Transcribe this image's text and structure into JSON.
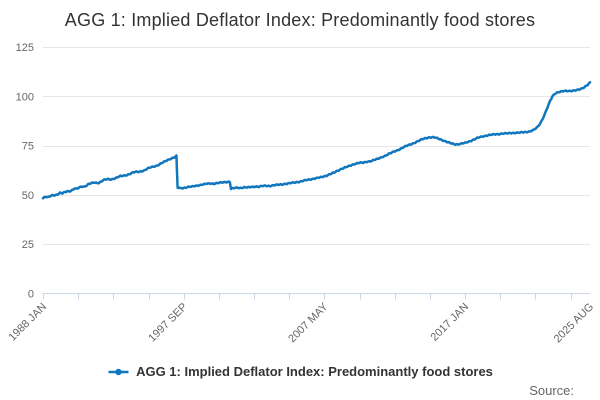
{
  "title": "AGG 1: Implied Deflator Index: Predominantly food stores",
  "source_label": "Source:",
  "legend": {
    "label": "AGG 1: Implied Deflator Index: Predominantly food stores"
  },
  "colors": {
    "series": "#1076be",
    "grid": "#e6e6e6",
    "axis": "#ccd6eb",
    "tick": "#ccd6eb",
    "axis_label": "#666666",
    "title": "#333333",
    "background": "#ffffff"
  },
  "chart_data": {
    "type": "line",
    "title": "AGG 1: Implied Deflator Index: Predominantly food stores",
    "legend_position": "bottom",
    "grid": "horizontal",
    "x_axis": {
      "unit": "month",
      "start": "1988 JAN",
      "end": "2025 AUG",
      "total_months": 451,
      "tick_interval_months": 29,
      "tick_count": 16,
      "labels": [
        {
          "month": 0,
          "text": "1988 JAN"
        },
        {
          "month": 116,
          "text": "1997 SEP"
        },
        {
          "month": 232,
          "text": "2007 MAY"
        },
        {
          "month": 348,
          "text": "2017 JAN"
        },
        {
          "month": 451,
          "text": "2025 AUG"
        }
      ]
    },
    "y_axis": {
      "min": 0,
      "max": 125,
      "ticks": [
        0,
        25,
        50,
        75,
        100,
        125
      ]
    },
    "series": [
      {
        "name": "AGG 1: Implied Deflator Index: Predominantly food stores",
        "color": "#1076be",
        "points": [
          [
            0,
            48.2
          ],
          [
            2,
            48.9
          ],
          [
            4,
            48.7
          ],
          [
            6,
            49.4
          ],
          [
            8,
            49.9
          ],
          [
            10,
            49.8
          ],
          [
            12,
            50.2
          ],
          [
            14,
            50.9
          ],
          [
            16,
            50.7
          ],
          [
            18,
            51.4
          ],
          [
            20,
            51.9
          ],
          [
            22,
            51.8
          ],
          [
            24,
            52.3
          ],
          [
            26,
            53.1
          ],
          [
            28,
            53.0
          ],
          [
            30,
            53.8
          ],
          [
            32,
            54.3
          ],
          [
            34,
            54.1
          ],
          [
            36,
            54.7
          ],
          [
            38,
            55.5
          ],
          [
            40,
            55.9
          ],
          [
            42,
            56.3
          ],
          [
            44,
            56.1
          ],
          [
            46,
            56.0
          ],
          [
            48,
            56.7
          ],
          [
            50,
            57.4
          ],
          [
            52,
            57.8
          ],
          [
            54,
            58.0
          ],
          [
            56,
            57.8
          ],
          [
            58,
            58.1
          ],
          [
            60,
            58.4
          ],
          [
            62,
            59.0
          ],
          [
            64,
            59.5
          ],
          [
            66,
            59.7
          ],
          [
            68,
            59.9
          ],
          [
            70,
            60.2
          ],
          [
            72,
            60.6
          ],
          [
            74,
            61.2
          ],
          [
            76,
            61.6
          ],
          [
            78,
            61.7
          ],
          [
            80,
            61.8
          ],
          [
            82,
            62.1
          ],
          [
            84,
            62.4
          ],
          [
            86,
            63.2
          ],
          [
            88,
            63.8
          ],
          [
            90,
            64.2
          ],
          [
            92,
            64.5
          ],
          [
            94,
            64.8
          ],
          [
            96,
            65.3
          ],
          [
            98,
            66.1
          ],
          [
            100,
            66.8
          ],
          [
            102,
            67.5
          ],
          [
            104,
            68.0
          ],
          [
            106,
            68.5
          ],
          [
            108,
            68.9
          ],
          [
            109,
            69.2
          ],
          [
            110,
            69.6
          ],
          [
            111,
            53.6
          ],
          [
            114,
            53.4
          ],
          [
            117,
            53.6
          ],
          [
            120,
            53.9
          ],
          [
            123,
            54.2
          ],
          [
            126,
            54.6
          ],
          [
            129,
            54.9
          ],
          [
            132,
            55.2
          ],
          [
            135,
            55.6
          ],
          [
            138,
            55.8
          ],
          [
            141,
            55.6
          ],
          [
            144,
            55.9
          ],
          [
            147,
            56.2
          ],
          [
            150,
            56.5
          ],
          [
            154,
            56.6
          ],
          [
            155,
            52.9
          ],
          [
            157,
            53.3
          ],
          [
            160,
            53.6
          ],
          [
            163,
            53.5
          ],
          [
            166,
            53.8
          ],
          [
            169,
            53.7
          ],
          [
            172,
            54.0
          ],
          [
            175,
            54.2
          ],
          [
            178,
            54.1
          ],
          [
            181,
            54.4
          ],
          [
            184,
            54.6
          ],
          [
            187,
            54.5
          ],
          [
            190,
            54.8
          ],
          [
            193,
            55.0
          ],
          [
            196,
            55.2
          ],
          [
            199,
            55.5
          ],
          [
            202,
            55.7
          ],
          [
            205,
            56.0
          ],
          [
            208,
            56.3
          ],
          [
            211,
            56.6
          ],
          [
            214,
            57.0
          ],
          [
            217,
            57.4
          ],
          [
            220,
            57.8
          ],
          [
            223,
            58.2
          ],
          [
            226,
            58.5
          ],
          [
            228,
            58.7
          ],
          [
            231,
            59.2
          ],
          [
            234,
            59.8
          ],
          [
            237,
            60.6
          ],
          [
            240,
            61.2
          ],
          [
            243,
            62.2
          ],
          [
            246,
            63.2
          ],
          [
            249,
            63.9
          ],
          [
            252,
            64.4
          ],
          [
            255,
            65.2
          ],
          [
            258,
            65.9
          ],
          [
            261,
            66.3
          ],
          [
            264,
            66.2
          ],
          [
            267,
            66.7
          ],
          [
            270,
            67.1
          ],
          [
            273,
            67.7
          ],
          [
            276,
            68.2
          ],
          [
            279,
            69.0
          ],
          [
            282,
            69.8
          ],
          [
            285,
            70.7
          ],
          [
            288,
            71.5
          ],
          [
            291,
            72.3
          ],
          [
            294,
            73.1
          ],
          [
            297,
            74.0
          ],
          [
            300,
            74.9
          ],
          [
            303,
            75.6
          ],
          [
            306,
            76.3
          ],
          [
            309,
            77.1
          ],
          [
            312,
            78.0
          ],
          [
            315,
            78.7
          ],
          [
            318,
            79.1
          ],
          [
            321,
            79.2
          ],
          [
            324,
            78.9
          ],
          [
            327,
            78.3
          ],
          [
            330,
            77.6
          ],
          [
            333,
            76.8
          ],
          [
            336,
            76.2
          ],
          [
            339,
            75.7
          ],
          [
            342,
            75.6
          ],
          [
            345,
            75.9
          ],
          [
            348,
            76.3
          ],
          [
            351,
            77.0
          ],
          [
            354,
            77.7
          ],
          [
            357,
            78.5
          ],
          [
            360,
            79.2
          ],
          [
            363,
            79.7
          ],
          [
            366,
            80.1
          ],
          [
            369,
            80.4
          ],
          [
            372,
            80.6
          ],
          [
            375,
            80.8
          ],
          [
            378,
            81.0
          ],
          [
            381,
            81.1
          ],
          [
            384,
            81.2
          ],
          [
            387,
            81.4
          ],
          [
            390,
            81.5
          ],
          [
            393,
            81.5
          ],
          [
            396,
            81.7
          ],
          [
            399,
            81.9
          ],
          [
            402,
            82.3
          ],
          [
            405,
            83.0
          ],
          [
            408,
            84.5
          ],
          [
            410,
            86.3
          ],
          [
            412,
            88.6
          ],
          [
            414,
            91.4
          ],
          [
            416,
            94.4
          ],
          [
            418,
            97.4
          ],
          [
            420,
            99.9
          ],
          [
            422,
            101.3
          ],
          [
            424,
            102.0
          ],
          [
            427,
            102.4
          ],
          [
            430,
            102.6
          ],
          [
            433,
            102.7
          ],
          [
            436,
            102.8
          ],
          [
            439,
            103.0
          ],
          [
            442,
            103.3
          ],
          [
            444,
            103.8
          ],
          [
            446,
            104.5
          ],
          [
            448,
            105.4
          ],
          [
            450,
            106.4
          ],
          [
            451,
            106.9
          ]
        ]
      }
    ]
  }
}
